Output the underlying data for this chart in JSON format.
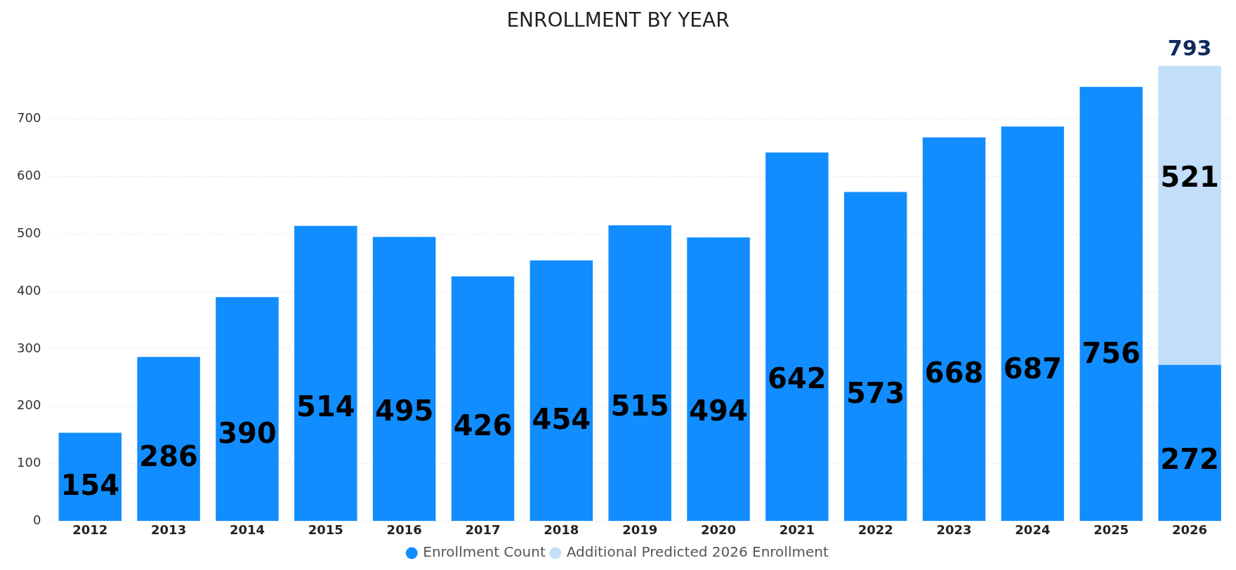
{
  "chart_data": {
    "type": "bar",
    "title": "ENROLLMENT BY YEAR",
    "categories": [
      "2012",
      "2013",
      "2014",
      "2015",
      "2016",
      "2017",
      "2018",
      "2019",
      "2020",
      "2021",
      "2022",
      "2023",
      "2024",
      "2025",
      "2026"
    ],
    "series": [
      {
        "name": "Enrollment Count",
        "color": "#118dff",
        "values": [
          154,
          286,
          390,
          514,
          495,
          426,
          454,
          515,
          494,
          642,
          573,
          668,
          687,
          756,
          272
        ]
      },
      {
        "name": "Additional Predicted 2026 Enrollment",
        "color": "#c2def9",
        "values": [
          null,
          null,
          null,
          null,
          null,
          null,
          null,
          null,
          null,
          null,
          null,
          null,
          null,
          null,
          521
        ]
      }
    ],
    "stacked": true,
    "data_labels": true,
    "totals": [
      null,
      null,
      null,
      null,
      null,
      null,
      null,
      null,
      null,
      null,
      null,
      null,
      null,
      null,
      "793"
    ],
    "ylim": [
      0,
      793
    ],
    "yticks": [
      0,
      100,
      200,
      300,
      400,
      500,
      600,
      700
    ],
    "grid": "y",
    "legend": "bottom",
    "marker": "circle"
  }
}
